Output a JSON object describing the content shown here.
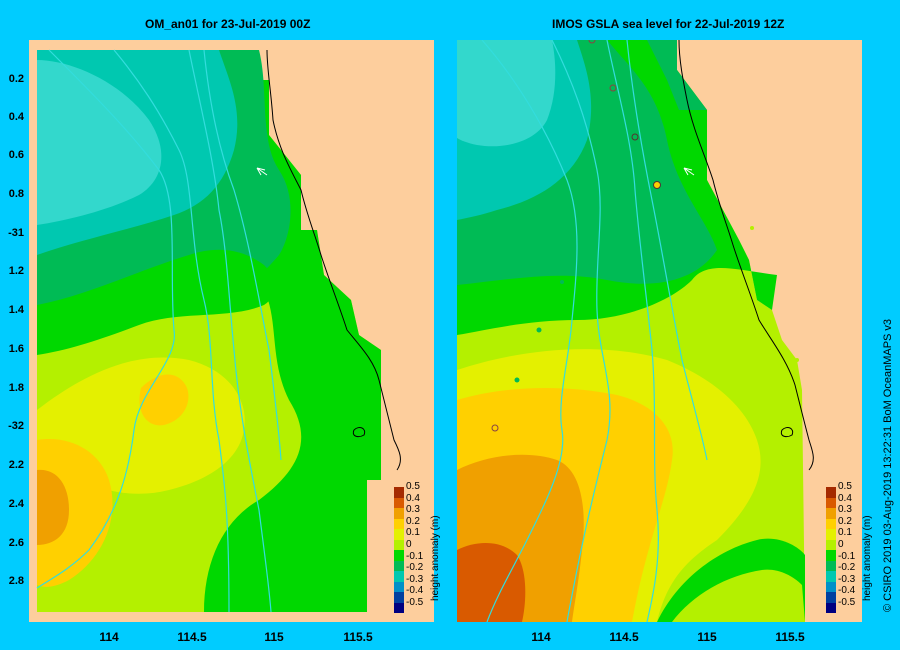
{
  "left_panel": {
    "title": "OM_an01  for 23-Jul-2019 00Z"
  },
  "right_panel": {
    "title": "IMOS GSLA sea level  for 22-Jul-2019 12Z"
  },
  "y_axis_labels": [
    "0.2",
    "0.4",
    "0.6",
    "0.8",
    "-31",
    "1.2",
    "1.4",
    "1.6",
    "1.8",
    "-32",
    "2.2",
    "2.4",
    "2.6",
    "2.8"
  ],
  "x_axis_labels": [
    "114",
    "114.5",
    "115",
    "115.5"
  ],
  "colorbar": {
    "title": "height anomaly (m)",
    "ticks": [
      "0.5",
      "0.4",
      "0.3",
      "0.2",
      "0.1",
      "0",
      "-0.1",
      "-0.2",
      "-0.3",
      "-0.4",
      "-0.5"
    ],
    "colors": [
      "#a52a00",
      "#d95a00",
      "#f0a000",
      "#ffd000",
      "#e4f000",
      "#b4f000",
      "#00d800",
      "#00bb55",
      "#00c8b0",
      "#0090c8",
      "#0040a0",
      "#000080"
    ]
  },
  "credit": "© CSIRO 2019  03-Aug-2019 13:22:31 BoM OceanMAPS v3",
  "colors": {
    "background": "#00ccff",
    "land": "#fdce9d",
    "bathymetry": "#33dddd"
  }
}
